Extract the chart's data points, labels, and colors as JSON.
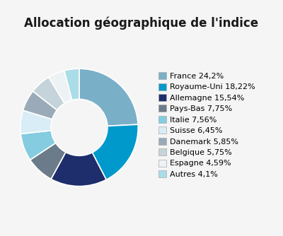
{
  "title": "Allocation géographique de l'indice",
  "labels": [
    "France 24,2%",
    "Royaume-Uni 18,22%",
    "Allemagne 15,54%",
    "Pays-Bas 7,75%",
    "Italie 7,56%",
    "Suisse 6,45%",
    "Danemark 5,85%",
    "Belgique 5,75%",
    "Espagne 4,59%",
    "Autres 4,1%"
  ],
  "values": [
    24.2,
    18.22,
    15.54,
    7.75,
    7.56,
    6.45,
    5.85,
    5.75,
    4.59,
    4.1
  ],
  "colors": [
    "#7aafc8",
    "#0099CC",
    "#1e2d6b",
    "#6b7b8a",
    "#85cce0",
    "#d9edf7",
    "#9aaab8",
    "#c5d3db",
    "#edf2f5",
    "#aadde8"
  ],
  "background_color": "#f5f5f5",
  "title_fontsize": 12,
  "legend_fontsize": 8,
  "startangle": 90
}
